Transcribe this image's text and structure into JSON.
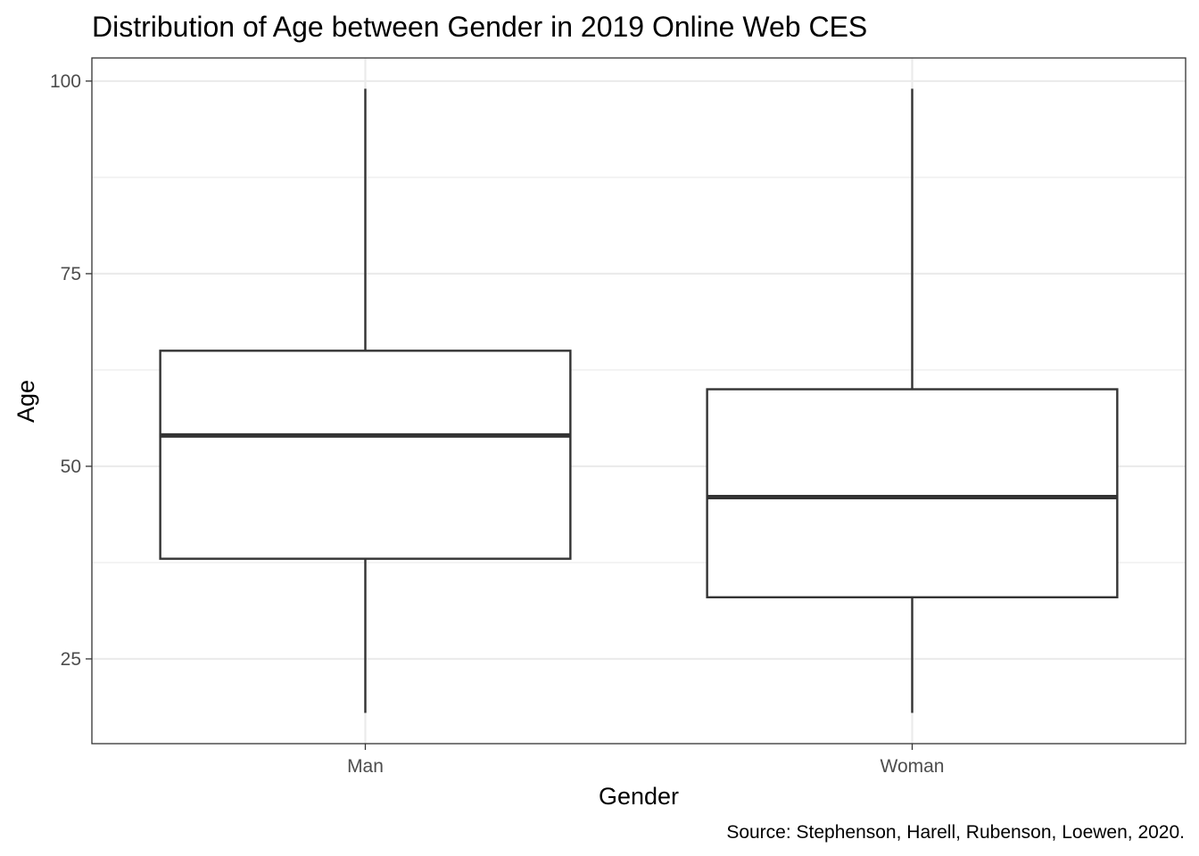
{
  "chart_data": {
    "type": "box",
    "title": "Distribution of Age between Gender in 2019 Online Web CES",
    "xlabel": "Gender",
    "ylabel": "Age",
    "caption": "Source: Stephenson, Harell, Rubenson, Loewen, 2020.",
    "categories": [
      "Man",
      "Woman"
    ],
    "y_ticks": [
      25,
      50,
      75,
      100
    ],
    "y_tick_labels": [
      "25",
      "50",
      "75",
      "100"
    ],
    "ylim": [
      14,
      103
    ],
    "grid": true,
    "boxes": [
      {
        "category": "Man",
        "min": 18,
        "q1": 38,
        "median": 54,
        "q3": 65,
        "max": 99
      },
      {
        "category": "Woman",
        "min": 18,
        "q1": 33,
        "median": 46,
        "q3": 60,
        "max": 99
      }
    ],
    "colors": {
      "box_stroke": "#333333",
      "box_fill": "#ffffff",
      "grid": "#ebebeb",
      "panel_border": "#333333"
    }
  }
}
